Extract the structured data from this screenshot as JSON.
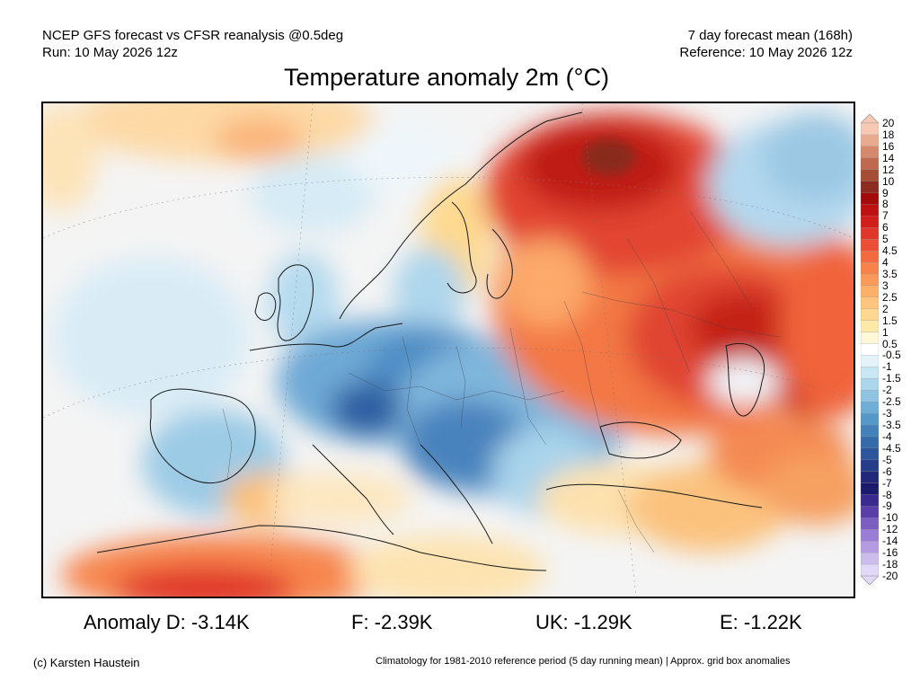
{
  "header": {
    "line1_left": "NCEP GFS forecast vs CFSR reanalysis @0.5deg",
    "line2_left": "Run: 10 May 2026 12z",
    "line1_right": "7 day forecast mean (168h)",
    "line2_right": "Reference: 10 May 2026 12z"
  },
  "title": "Temperature anomaly 2m (°C)",
  "colorbar": {
    "labels": [
      "20",
      "18",
      "16",
      "14",
      "12",
      "10",
      "9",
      "8",
      "7",
      "6",
      "5",
      "4.5",
      "4",
      "3.5",
      "3",
      "2.5",
      "2",
      "1.5",
      "1",
      "0.5",
      "-0.5",
      "-1",
      "-1.5",
      "-2",
      "-2.5",
      "-3",
      "-3.5",
      "-4",
      "-4.5",
      "-5",
      "-6",
      "-7",
      "-8",
      "-9",
      "-10",
      "-12",
      "-14",
      "-16",
      "-18",
      "-20"
    ],
    "colors": [
      "#f6c9b4",
      "#e9ab8f",
      "#d4896c",
      "#bf6a4e",
      "#a54d35",
      "#8a2c1f",
      "#a30b0b",
      "#bf1111",
      "#d21d1d",
      "#e1372a",
      "#ec4f36",
      "#f36a3f",
      "#f7824c",
      "#fa9a5a",
      "#fcb06a",
      "#fdc67c",
      "#fed890",
      "#feeaa8",
      "#fff8d8",
      "#ffffff",
      "#e4f3fa",
      "#c9e6f3",
      "#acd6ec",
      "#8ec4e2",
      "#6faed6",
      "#5698c8",
      "#4381ba",
      "#356aab",
      "#2d559b",
      "#263e8a",
      "#22297a",
      "#1c1a6c",
      "#3a2a8e",
      "#5a3fa8",
      "#7c5ec2",
      "#9a7dd4",
      "#b59ce2",
      "#ccbcee",
      "#e2d8f7"
    ]
  },
  "stats": {
    "d": "Anomaly D: -3.14K",
    "f": "F: -2.39K",
    "uk": "UK: -1.29K",
    "e": "E: -1.22K"
  },
  "footer": {
    "left": "(c) Karsten Haustein",
    "right": "Climatology for 1981-2010 reference period (5 day running mean) | Approx. grid box anomalies"
  }
}
